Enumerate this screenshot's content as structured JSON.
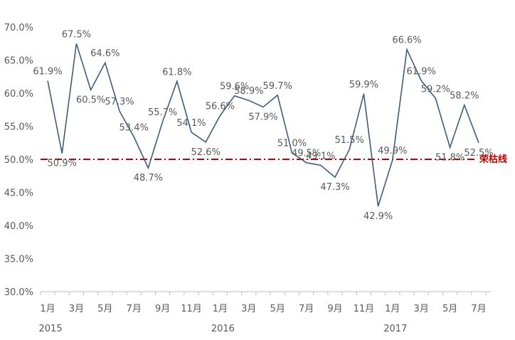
{
  "chart_data": {
    "type": "line",
    "x": [
      "2015-01",
      "2015-02",
      "2015-03",
      "2015-04",
      "2015-05",
      "2015-06",
      "2015-07",
      "2015-08",
      "2015-09",
      "2015-10",
      "2015-11",
      "2015-12",
      "2016-01",
      "2016-02",
      "2016-03",
      "2016-04",
      "2016-05",
      "2016-06",
      "2016-07",
      "2016-08",
      "2016-09",
      "2016-10",
      "2016-11",
      "2016-12",
      "2017-01",
      "2017-02",
      "2017-03",
      "2017-04",
      "2017-05",
      "2017-06",
      "2017-07"
    ],
    "values": [
      61.9,
      50.9,
      67.5,
      60.5,
      64.6,
      57.3,
      53.4,
      48.7,
      55.7,
      61.8,
      54.1,
      52.6,
      56.6,
      59.6,
      58.9,
      57.9,
      59.7,
      51.0,
      49.5,
      49.1,
      47.3,
      51.5,
      59.9,
      42.9,
      49.9,
      66.6,
      61.9,
      59.2,
      51.8,
      58.2,
      52.5
    ],
    "data_labels": [
      "61.9%",
      "50.9%",
      "67.5%",
      "60.5%",
      "64.6%",
      "57.3%",
      "53.4%",
      "48.7%",
      "55.7%",
      "61.8%",
      "54.1%",
      "52.6%",
      "56.6%",
      "59.6%",
      "58.9%",
      "57.9%",
      "59.7%",
      "51.0%",
      "49.5%",
      "49.1%",
      "47.3%",
      "51.5%",
      "59.9%",
      "42.9%",
      "49.9%",
      "66.6%",
      "61.9%",
      "59.2%",
      "51.8%",
      "58.2%",
      "52.5%"
    ],
    "y_ticks": [
      "30.0%",
      "35.0%",
      "40.0%",
      "45.0%",
      "50.0%",
      "55.0%",
      "60.0%",
      "65.0%",
      "70.0%"
    ],
    "ylim": [
      30,
      70
    ],
    "x_tick_labels": [
      "1月",
      "3月",
      "5月",
      "7月",
      "9月",
      "11月",
      "1月",
      "3月",
      "5月",
      "7月",
      "9月",
      "11月",
      "1月",
      "3月",
      "5月",
      "7月"
    ],
    "year_labels": [
      "2015",
      "2016",
      "2017"
    ],
    "reference_line": {
      "value": 50.0,
      "label": "荣枯线",
      "color": "#C00000"
    },
    "line_color": "#3E5D7E",
    "grid": false
  }
}
